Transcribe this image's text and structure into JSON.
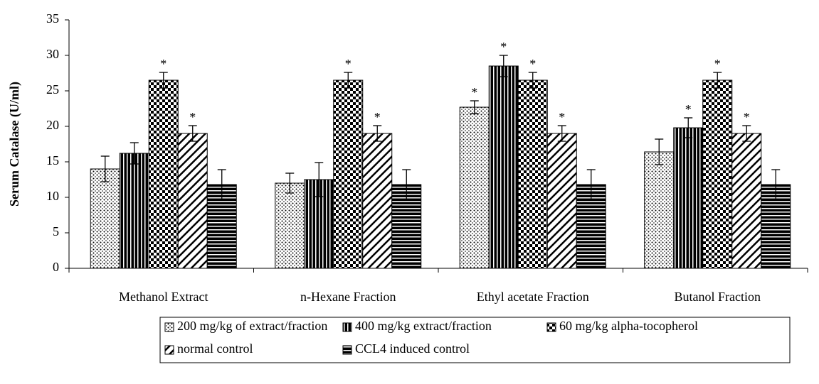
{
  "chart_data": {
    "type": "bar",
    "y_label": "Serum Catalase (U/ml)",
    "categories": [
      "Methanol Extract",
      "n-Hexane Fraction",
      "Ethyl acetate Fraction",
      "Butanol Fraction"
    ],
    "series": [
      {
        "name": "200 mg/kg of extract/fraction",
        "color": "#000000",
        "pattern": "dots",
        "values": [
          14,
          12,
          22.7,
          16.4
        ],
        "errors": [
          1.8,
          1.4,
          0.9,
          1.8
        ],
        "markers": [
          null,
          null,
          "*",
          null
        ]
      },
      {
        "name": "400 mg/kg extract/fraction",
        "color": "#000000",
        "pattern": "vertical",
        "values": [
          16.2,
          12.5,
          28.5,
          19.8
        ],
        "errors": [
          1.5,
          2.4,
          1.5,
          1.4
        ],
        "markers": [
          null,
          null,
          "*",
          "*"
        ]
      },
      {
        "name": "60 mg/kg alpha-tocopherol",
        "color": "#000000",
        "pattern": "checker",
        "values": [
          26.5,
          26.5,
          26.5,
          26.5
        ],
        "errors": [
          1.1,
          1.1,
          1.1,
          1.1
        ],
        "markers": [
          "*",
          "*",
          "*",
          "*"
        ]
      },
      {
        "name": "normal control",
        "color": "#000000",
        "pattern": "diagonal",
        "values": [
          19,
          19,
          19,
          19
        ],
        "errors": [
          1.1,
          1.1,
          1.1,
          1.1
        ],
        "markers": [
          "*",
          "*",
          "*",
          "*"
        ]
      },
      {
        "name": "CCL4 induced control",
        "color": "#000000",
        "pattern": "horizontal",
        "values": [
          11.8,
          11.8,
          11.8,
          11.8
        ],
        "errors": [
          2.1,
          2.1,
          2.1,
          2.1
        ],
        "markers": [
          null,
          null,
          null,
          null
        ]
      }
    ],
    "ylim": [
      0,
      35
    ],
    "yticks": [
      0,
      5,
      10,
      15,
      20,
      25,
      30,
      35
    ],
    "grid": false,
    "legend": "bottom"
  }
}
